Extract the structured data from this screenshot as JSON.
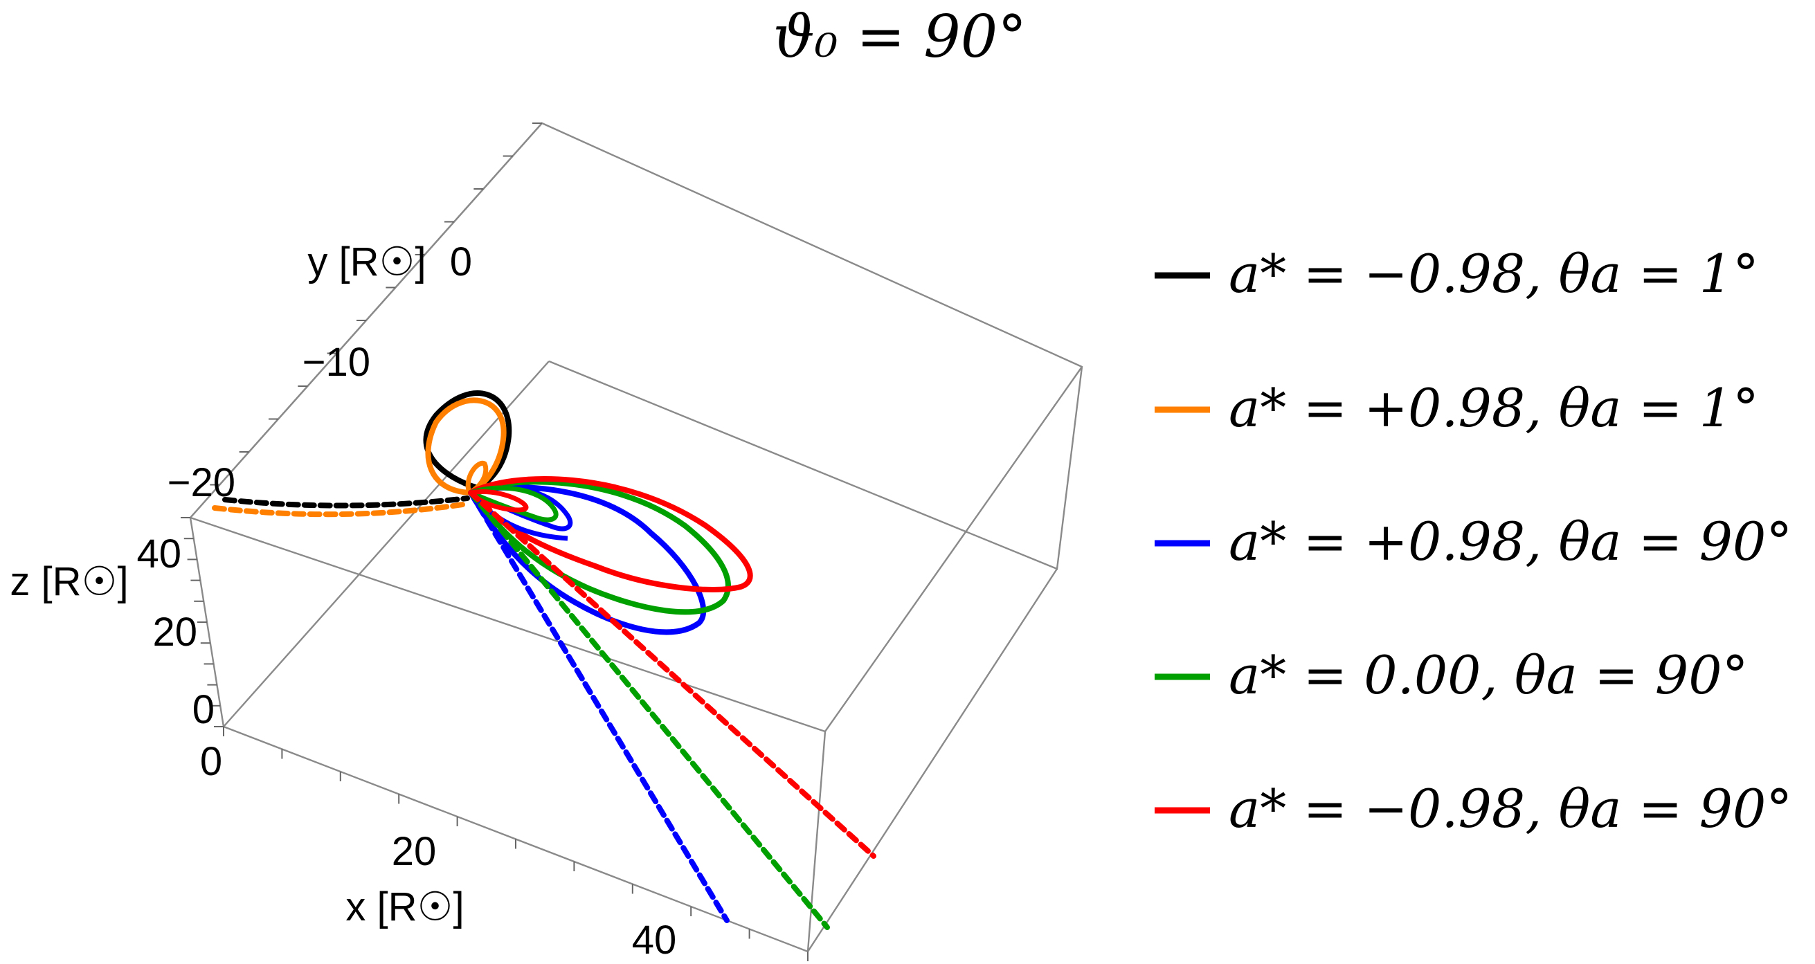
{
  "chart_data": {
    "type": "line",
    "title": "ϑ₀ = 90°",
    "axes": {
      "x": {
        "label": "x [R☉]",
        "ticks": [
          "0",
          "20",
          "40"
        ]
      },
      "y": {
        "label": "y [R☉]",
        "ticks": [
          "0",
          "−10",
          "−20"
        ]
      },
      "z": {
        "label": "z [R☉]",
        "ticks": [
          "0",
          "20",
          "40"
        ]
      }
    },
    "legend_position": "right",
    "series": [
      {
        "name": "a* = −0.98,  θa = 1°",
        "color": "#000000"
      },
      {
        "name": "a* = +0.98,  θa = 1°",
        "color": "#ff8000"
      },
      {
        "name": "a* = +0.98,  θa = 90°",
        "color": "#0000ff"
      },
      {
        "name": "a* = 0.00,  θa = 90°",
        "color": "#00a000"
      },
      {
        "name": "a* = −0.98,  θa = 90°",
        "color": "#ff0000"
      }
    ]
  }
}
